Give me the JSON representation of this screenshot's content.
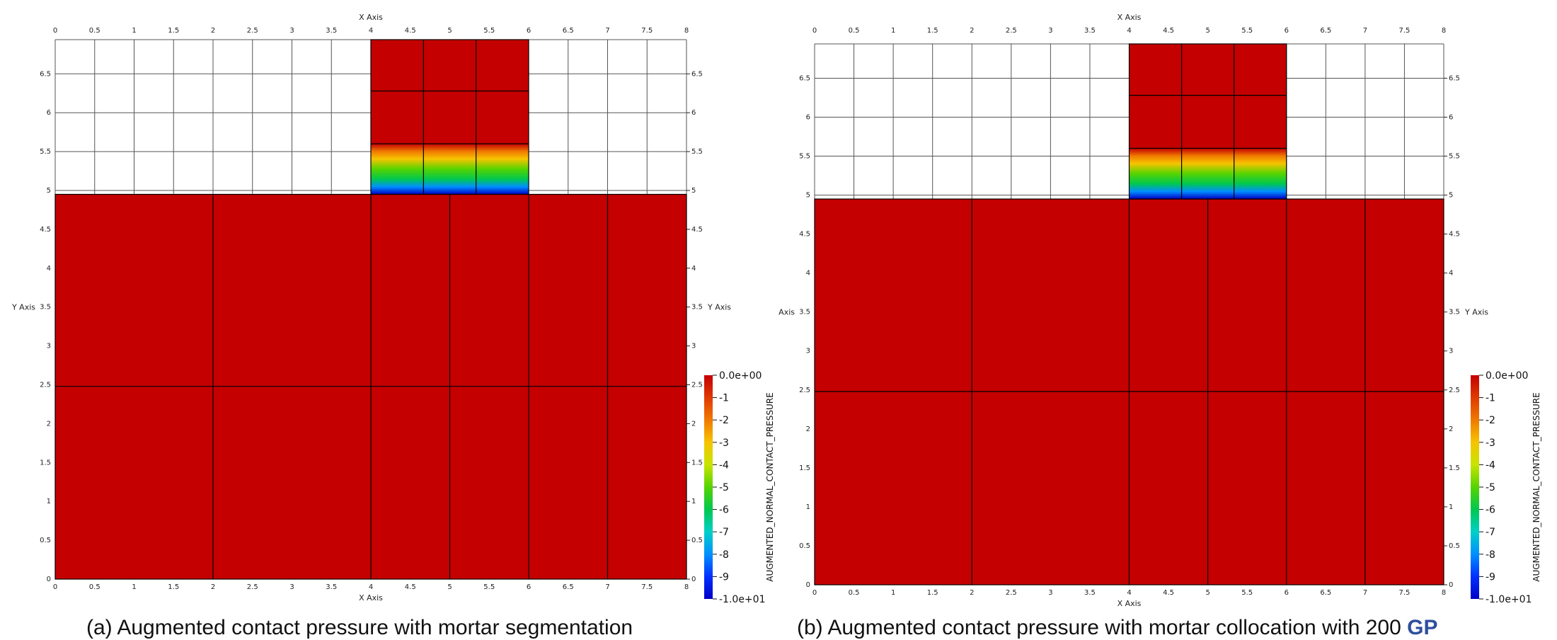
{
  "panels": [
    {
      "id": "a",
      "caption_label": "(a)",
      "caption_text": "Augmented contact pressure with mortar segmentation",
      "caption_highlight": "",
      "axis_title_x": "X Axis",
      "axis_title_y": "Y Axis",
      "x_ticks": [
        "0",
        "0.5",
        "1",
        "1.5",
        "2",
        "2.5",
        "3",
        "3.5",
        "4",
        "4.5",
        "5",
        "5.5",
        "6",
        "6.5",
        "7",
        "7.5",
        "8"
      ],
      "y_ticks": [
        "0",
        "0.5",
        "1",
        "1.5",
        "2",
        "2.5",
        "3",
        "3.5",
        "4",
        "4.5",
        "5",
        "5.5",
        "6",
        "6.5"
      ],
      "colorbar": {
        "title": "AUGMENTED_NORMAL_CONTACT_PRESSURE",
        "labels": [
          "0.0e+00",
          "-1",
          "-2",
          "-3",
          "-4",
          "-5",
          "-6",
          "-7",
          "-8",
          "-9",
          "-1.0e+01"
        ]
      }
    },
    {
      "id": "b",
      "caption_label": "(b)",
      "caption_text": "Augmented contact pressure with mortar collocation with 200",
      "caption_highlight": "GP",
      "axis_title_x": "X Axis",
      "axis_title_y": "Y Axis",
      "x_ticks": [
        "0",
        "0.5",
        "1",
        "1.5",
        "2",
        "2.5",
        "3",
        "3.5",
        "4",
        "4.5",
        "5",
        "5.5",
        "6",
        "6.5",
        "7",
        "7.5",
        "8"
      ],
      "y_ticks": [
        "0",
        "0.5",
        "1",
        "1.5",
        "2",
        "2.5",
        "3",
        "3.5",
        "4",
        "4.5",
        "5",
        "5.5",
        "6",
        "6.5"
      ],
      "colorbar": {
        "title": "AUGMENTED_NORMAL_CONTACT_PRESSURE",
        "labels": [
          "0.0e+00",
          "-1",
          "-2",
          "-3",
          "-4",
          "-5",
          "-6",
          "-7",
          "-8",
          "-9",
          "-1.0e+01"
        ]
      }
    }
  ],
  "colors": {
    "pressure_max": "#c40000",
    "mesh_lines": "#000000",
    "colormap": [
      "#c40000",
      "#e03a00",
      "#f07a00",
      "#f6c400",
      "#c8e400",
      "#55d400",
      "#00c850",
      "#00d0c8",
      "#0090ff",
      "#0030ff",
      "#0000c8"
    ]
  }
}
